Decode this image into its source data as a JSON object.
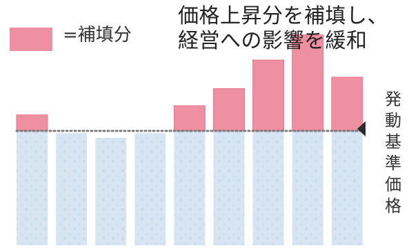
{
  "legend": {
    "label": "=補填分",
    "color": "#ef8fa2"
  },
  "headline": {
    "line1": "価格上昇分を補填し、",
    "line2": "経営への影響を緩和"
  },
  "reference_label": "発動基準価格",
  "colors": {
    "supplement_fill": "#ef8fa2",
    "supplement_top": "#e8758c",
    "base_fill": "#d6e5f1",
    "base_texture": "#c7dcec",
    "dotted_line": "#7b7b7b",
    "marker": "#2b2b2b"
  },
  "chart_data": {
    "type": "bar",
    "categories": [
      "",
      "",
      "",
      "",
      "",
      "",
      "",
      "",
      ""
    ],
    "series": [
      {
        "name": "",
        "stack": "base",
        "values": [
          100,
          98,
          94,
          98,
          100,
          100,
          100,
          100,
          100
        ]
      },
      {
        "name": "=補填分",
        "stack": "supplement",
        "values": [
          14,
          0,
          0,
          0,
          22,
          37,
          62,
          84,
          47
        ]
      }
    ],
    "reference_line": 100,
    "reference_label": "発動基準価格",
    "ylim": [
      0,
      225
    ],
    "grid": false,
    "legend_position": "top-left"
  }
}
